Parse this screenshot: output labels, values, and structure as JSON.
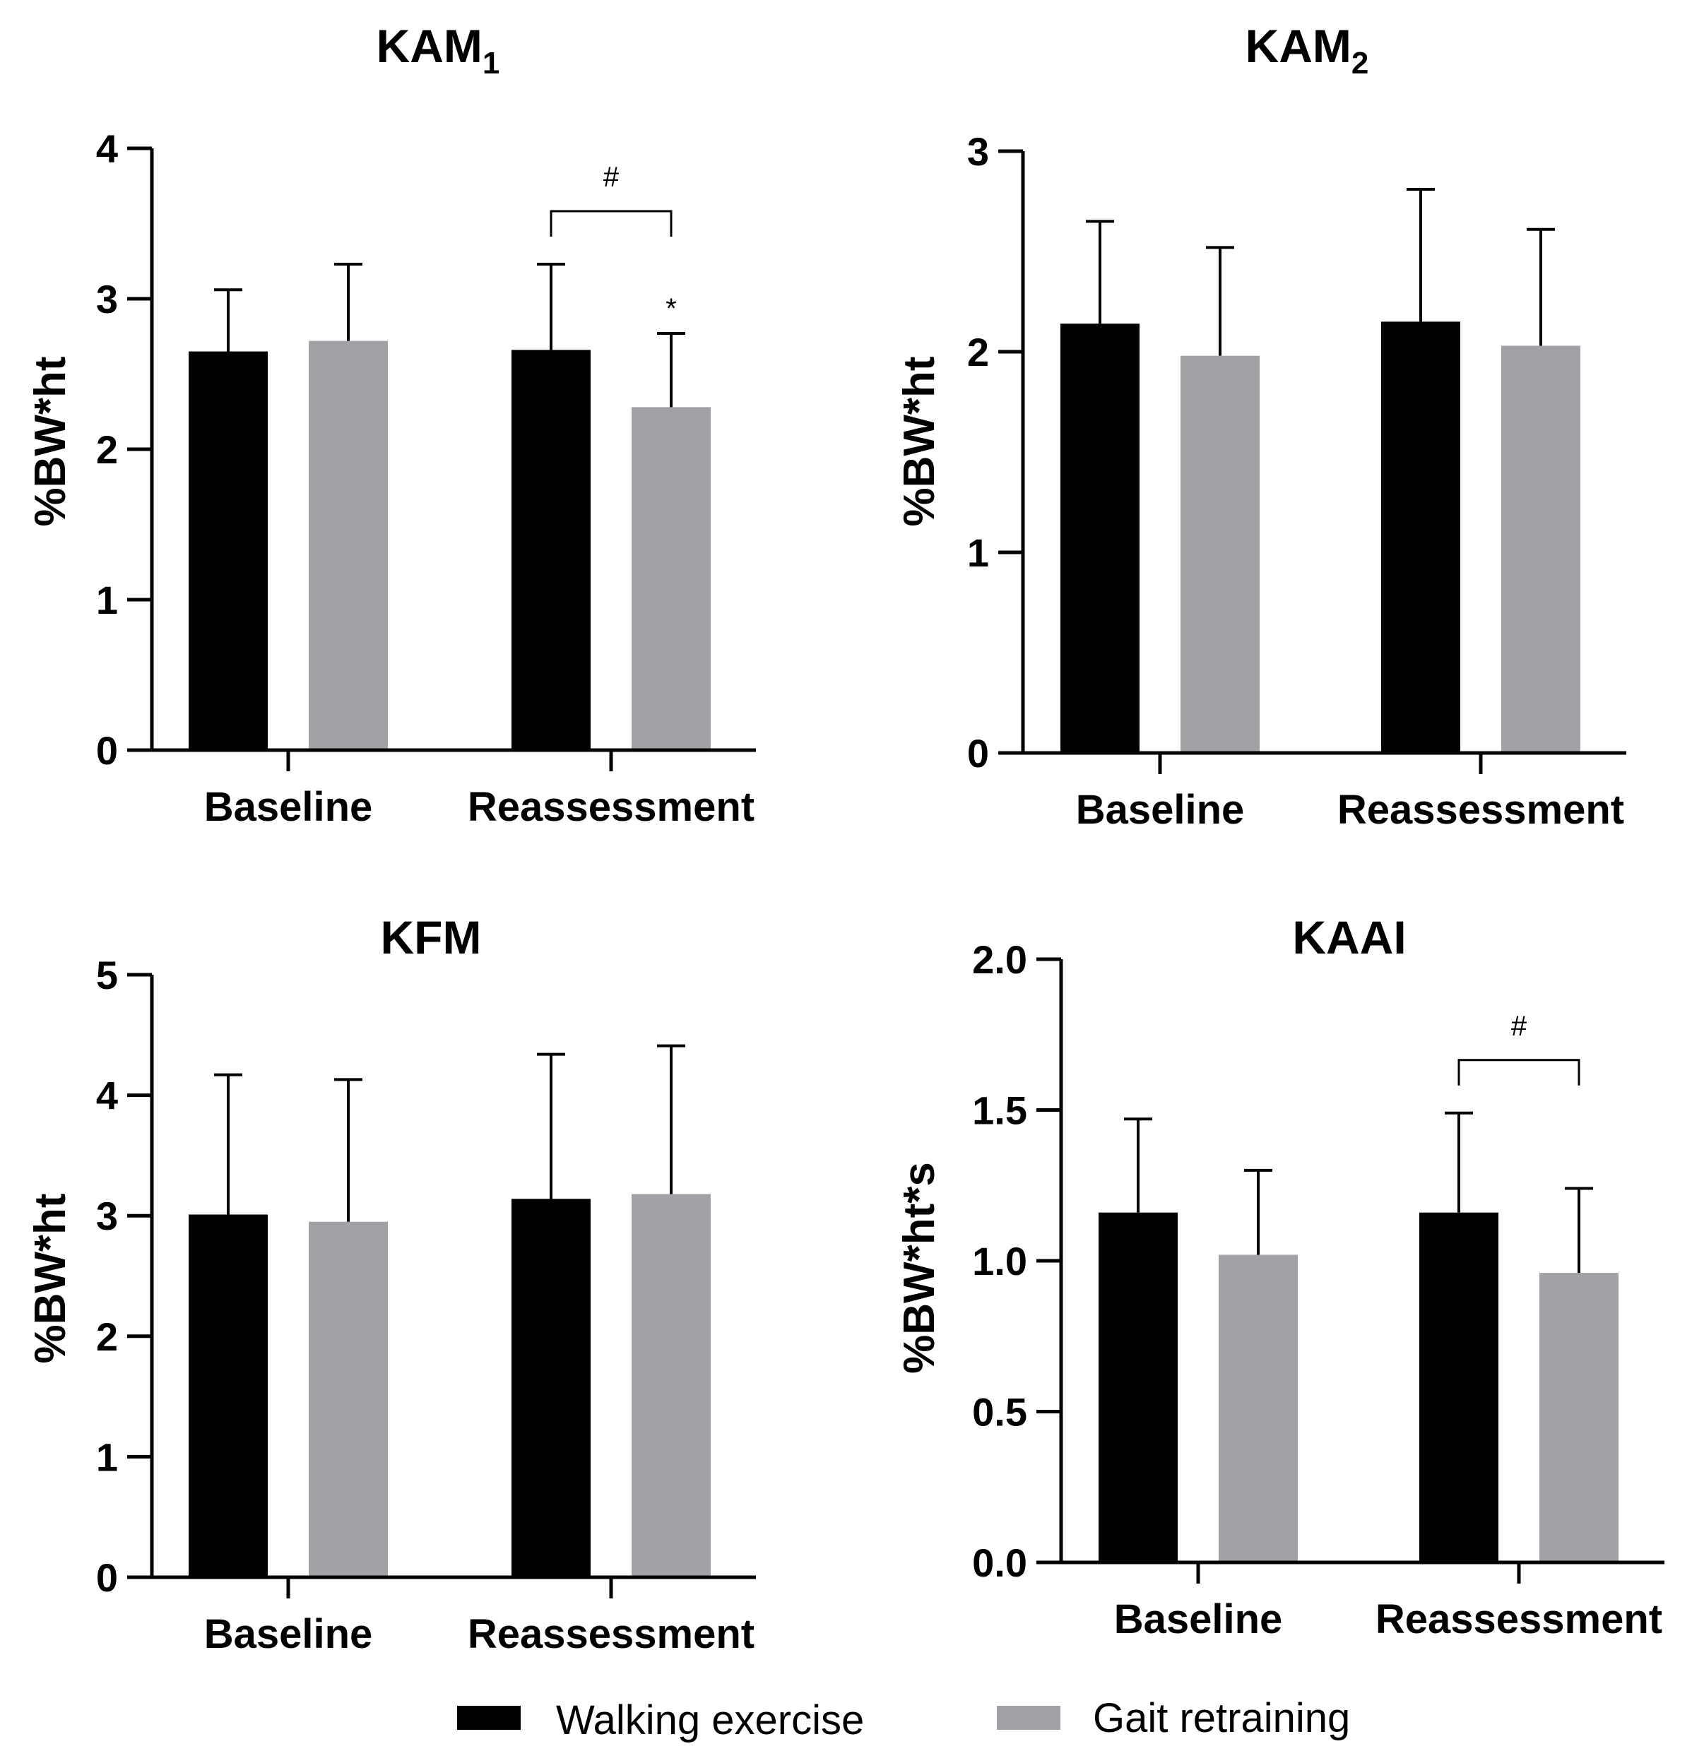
{
  "legend": {
    "walking_label": "Walking exercise",
    "gait_label": "Gait retraining"
  },
  "colors": {
    "walking": "#000000",
    "gait": "#a2a2a6",
    "axis": "#000000"
  },
  "chart_data": [
    {
      "type": "bar",
      "title": "KAM",
      "title_sub": "1",
      "ylabel": "%BW*ht",
      "xlabel": "",
      "ylim": [
        0,
        4
      ],
      "yticks": [
        0,
        1,
        2,
        3,
        4
      ],
      "ytick_labels": [
        "0",
        "1",
        "2",
        "3",
        "4"
      ],
      "categories": [
        "Baseline",
        "Reassessment"
      ],
      "series": [
        {
          "name": "Walking exercise",
          "values": [
            2.65,
            2.66
          ],
          "errors": [
            0.41,
            0.57
          ]
        },
        {
          "name": "Gait retraining",
          "values": [
            2.72,
            2.28
          ],
          "errors": [
            0.51,
            0.49
          ]
        }
      ],
      "annotations": [
        {
          "type": "bracket",
          "category": 1,
          "text": "#"
        },
        {
          "type": "mark",
          "category": 1,
          "series": 1,
          "text": "*"
        }
      ]
    },
    {
      "type": "bar",
      "title": "KAM",
      "title_sub": "2",
      "ylabel": "%BW*ht",
      "xlabel": "",
      "ylim": [
        0,
        3
      ],
      "yticks": [
        0,
        1,
        2,
        3
      ],
      "ytick_labels": [
        "0",
        "1",
        "2",
        "3"
      ],
      "categories": [
        "Baseline",
        "Reassessment"
      ],
      "series": [
        {
          "name": "Walking exercise",
          "values": [
            2.14,
            2.15
          ],
          "errors": [
            0.51,
            0.66
          ]
        },
        {
          "name": "Gait retraining",
          "values": [
            1.98,
            2.03
          ],
          "errors": [
            0.54,
            0.58
          ]
        }
      ],
      "annotations": []
    },
    {
      "type": "bar",
      "title": "KFM",
      "title_sub": "",
      "ylabel": "%BW*ht",
      "xlabel": "",
      "ylim": [
        0,
        5
      ],
      "yticks": [
        0,
        1,
        2,
        3,
        4,
        5
      ],
      "ytick_labels": [
        "0",
        "1",
        "2",
        "3",
        "4",
        "5"
      ],
      "categories": [
        "Baseline",
        "Reassessment"
      ],
      "series": [
        {
          "name": "Walking exercise",
          "values": [
            3.01,
            3.14
          ],
          "errors": [
            1.16,
            1.2
          ]
        },
        {
          "name": "Gait retraining",
          "values": [
            2.95,
            3.18
          ],
          "errors": [
            1.18,
            1.23
          ]
        }
      ],
      "annotations": []
    },
    {
      "type": "bar",
      "title": "KAAI",
      "title_sub": "",
      "ylabel": "%BW*ht*s",
      "xlabel": "",
      "ylim": [
        0,
        2
      ],
      "yticks": [
        0,
        0.5,
        1,
        1.5,
        2
      ],
      "ytick_labels": [
        "0.0",
        "0.5",
        "1.0",
        "1.5",
        "2.0"
      ],
      "categories": [
        "Baseline",
        "Reassessment"
      ],
      "series": [
        {
          "name": "Walking exercise",
          "values": [
            1.16,
            1.16
          ],
          "errors": [
            0.31,
            0.33
          ]
        },
        {
          "name": "Gait retraining",
          "values": [
            1.02,
            0.96
          ],
          "errors": [
            0.28,
            0.28
          ]
        }
      ],
      "annotations": [
        {
          "type": "bracket",
          "category": 1,
          "text": "#"
        }
      ]
    }
  ]
}
